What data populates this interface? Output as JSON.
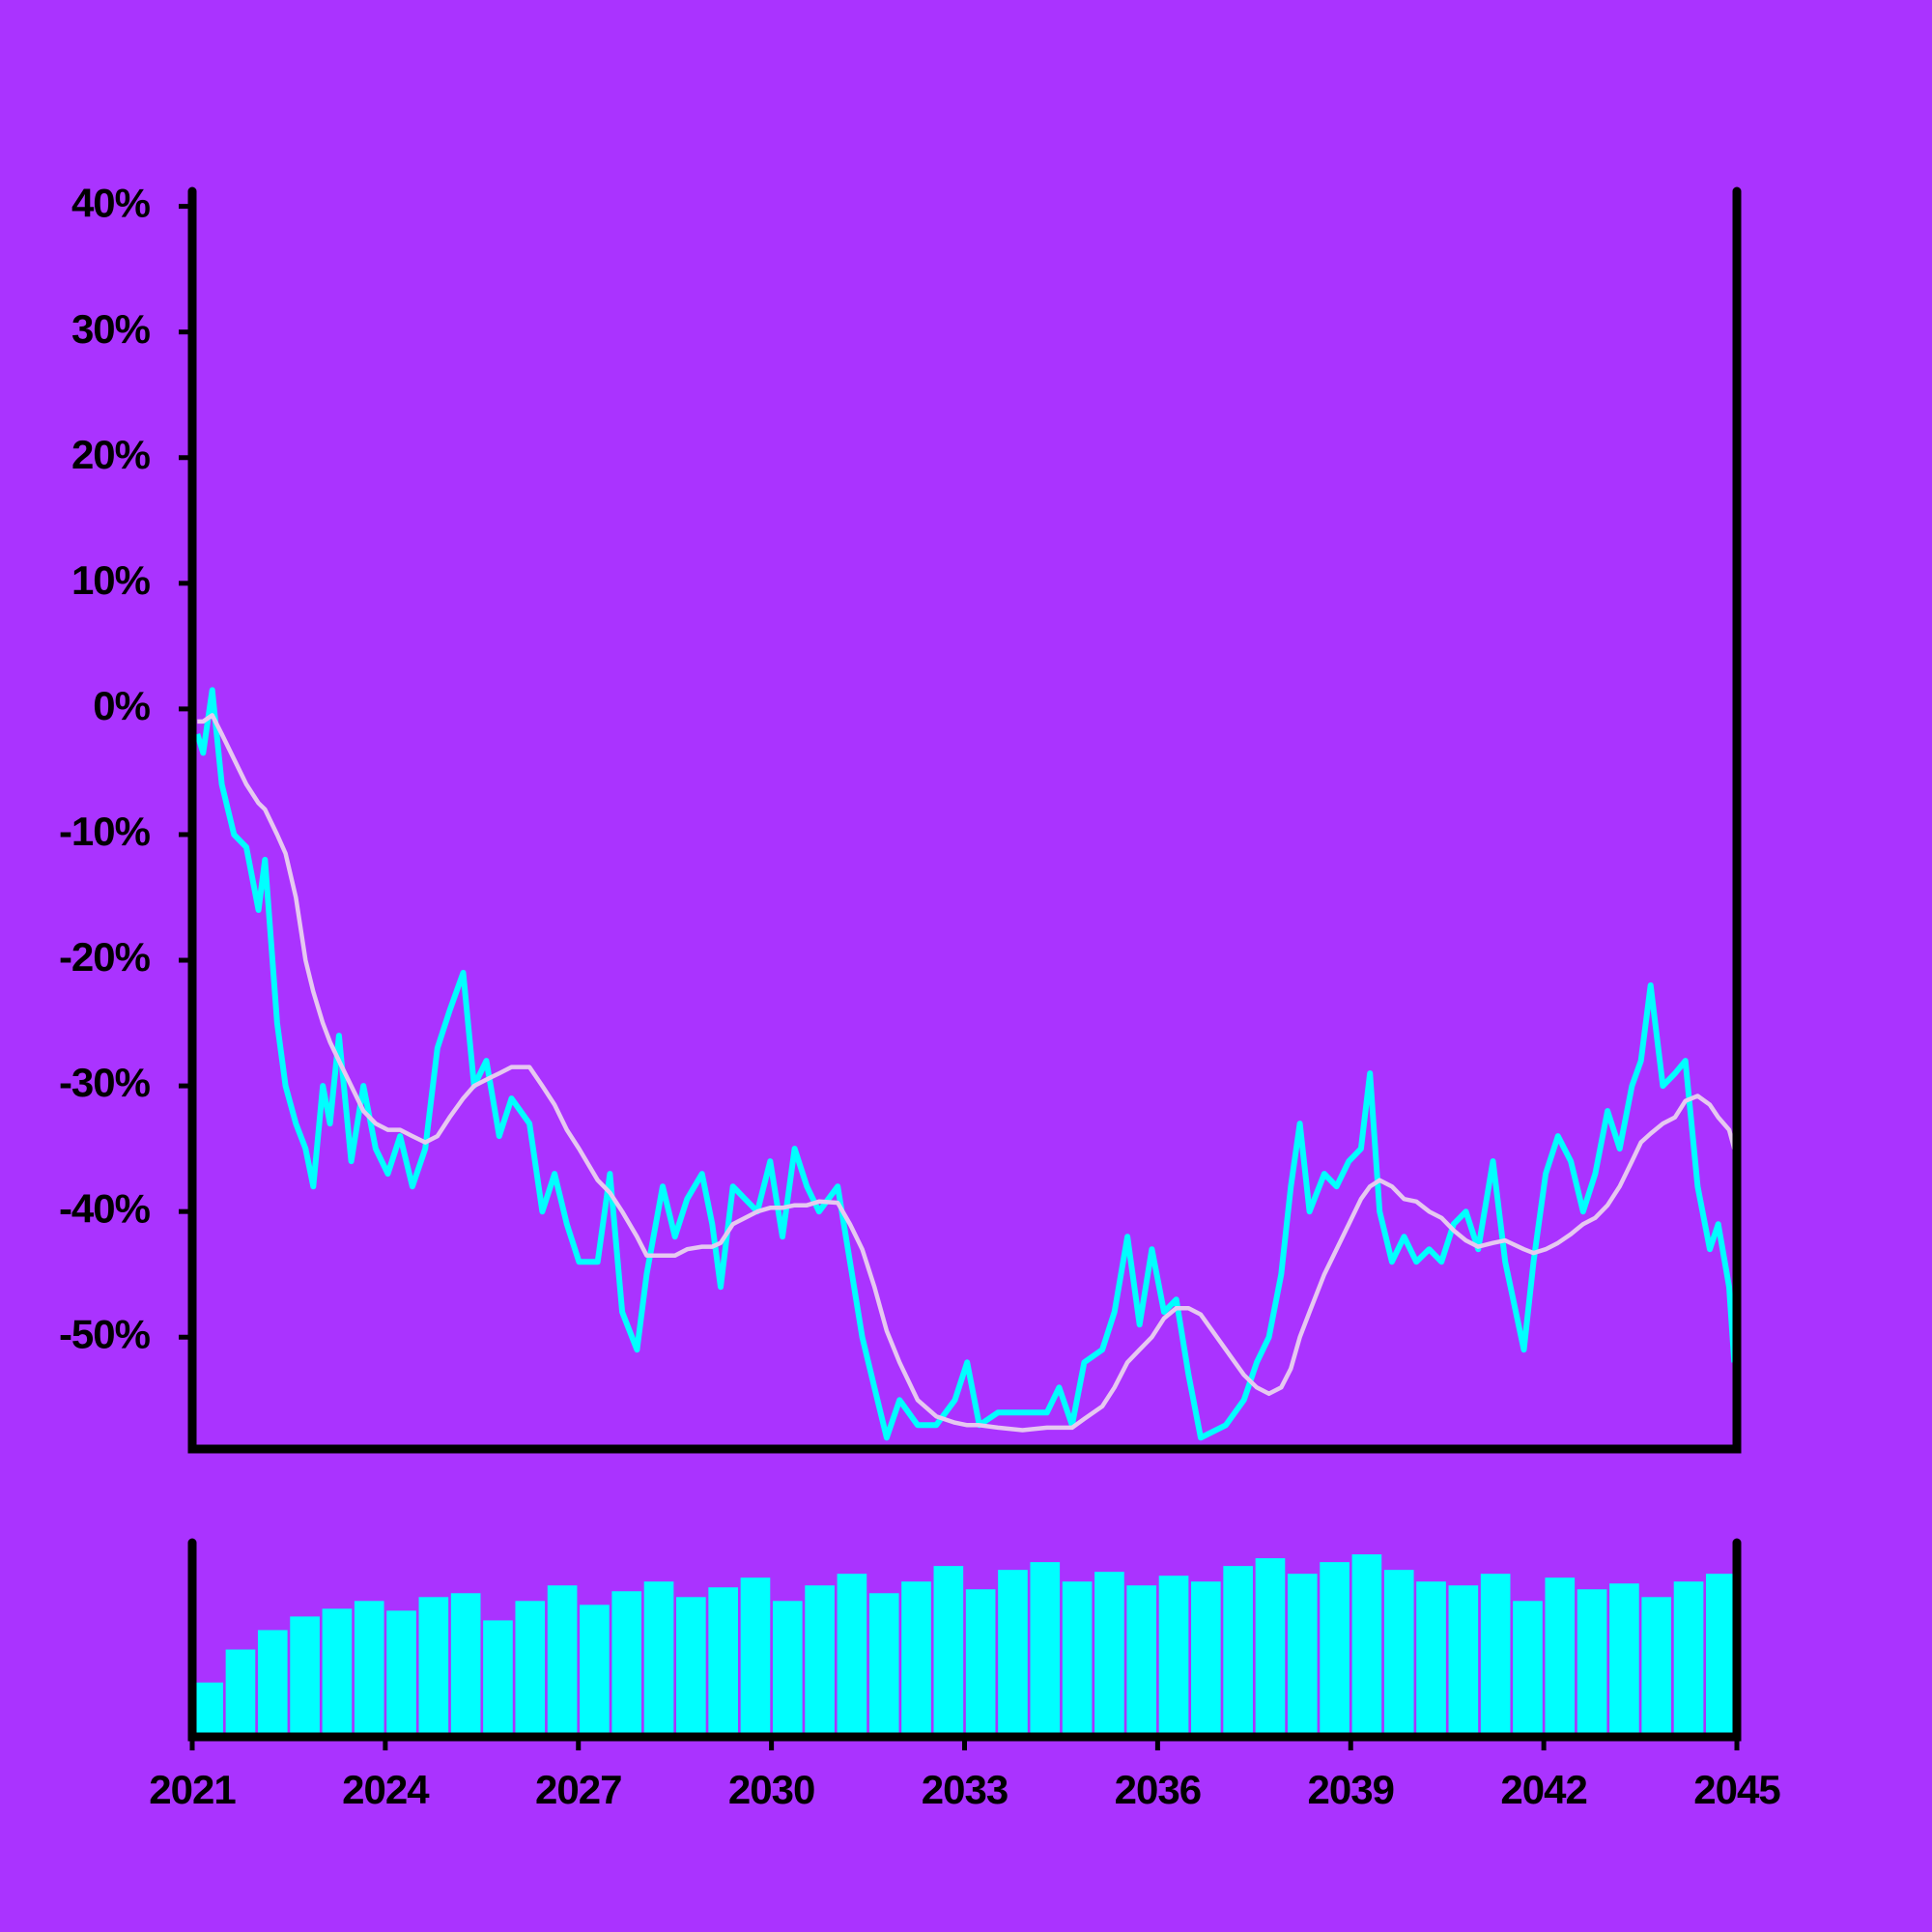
{
  "chart_data": [
    {
      "type": "line",
      "x": [
        2021.08,
        2021.17,
        2021.31,
        2021.46,
        2021.65,
        2021.84,
        2022.03,
        2022.13,
        2022.32,
        2022.45,
        2022.61,
        2022.76,
        2022.88,
        2023.03,
        2023.14,
        2023.28,
        2023.47,
        2023.66,
        2023.85,
        2024.04,
        2024.23,
        2024.42,
        2024.62,
        2024.81,
        2025.0,
        2025.21,
        2025.38,
        2025.57,
        2025.77,
        2025.96,
        2026.24,
        2026.44,
        2026.63,
        2026.82,
        2027.01,
        2027.3,
        2027.49,
        2027.68,
        2027.91,
        2028.06,
        2028.31,
        2028.5,
        2028.69,
        2028.92,
        2029.08,
        2029.21,
        2029.4,
        2029.59,
        2029.78,
        2029.98,
        2030.17,
        2030.36,
        2030.55,
        2030.74,
        2031.03,
        2031.22,
        2031.41,
        2031.6,
        2031.79,
        2031.99,
        2032.27,
        2032.56,
        2032.85,
        2033.04,
        2033.23,
        2033.52,
        2033.9,
        2034.28,
        2034.47,
        2034.67,
        2034.86,
        2035.14,
        2035.33,
        2035.53,
        2035.72,
        2035.91,
        2036.1,
        2036.29,
        2036.48,
        2036.67,
        2037.06,
        2037.34,
        2037.54,
        2037.73,
        2037.92,
        2038.07,
        2038.21,
        2038.36,
        2038.59,
        2038.78,
        2038.97,
        2039.16,
        2039.3,
        2039.45,
        2039.64,
        2039.83,
        2040.02,
        2040.22,
        2040.41,
        2040.6,
        2040.79,
        2040.98,
        2041.21,
        2041.4,
        2041.69,
        2041.84,
        2042.03,
        2042.22,
        2042.42,
        2042.61,
        2042.8,
        2042.99,
        2043.18,
        2043.37,
        2043.51,
        2043.66,
        2043.85,
        2044.04,
        2044.2,
        2044.39,
        2044.58,
        2044.71,
        2044.88,
        2044.96
      ],
      "series": [
        {
          "color": "#00ffff",
          "values": [
            -2,
            -3.5,
            1.5,
            -6,
            -10,
            -11,
            -16,
            -12,
            -25,
            -30,
            -33,
            -35,
            -38,
            -30,
            -33,
            -26,
            -36,
            -30,
            -35,
            -37,
            -34,
            -38,
            -35,
            -27,
            -24,
            -21,
            -30,
            -28,
            -34,
            -31,
            -33,
            -40,
            -37,
            -41,
            -44,
            -44,
            -37,
            -48,
            -51,
            -45,
            -38,
            -42,
            -39,
            -37,
            -41,
            -46,
            -38,
            -39,
            -40,
            -36,
            -42,
            -35,
            -38,
            -40,
            -38,
            -44,
            -50,
            -54,
            -58,
            -55,
            -57,
            -57,
            -55,
            -52,
            -57,
            -56,
            -56,
            -56,
            -54,
            -57,
            -52,
            -51,
            -48,
            -42,
            -49,
            -43,
            -48,
            -47,
            -53,
            -58,
            -57,
            -55,
            -52,
            -50,
            -45,
            -38,
            -33,
            -40,
            -37,
            -38,
            -36,
            -35,
            -29,
            -40,
            -44,
            -42,
            -44,
            -43,
            -44,
            -41,
            -40,
            -43,
            -36,
            -44,
            -51,
            -44,
            -37,
            -34,
            -36,
            -40,
            -37,
            -32,
            -35,
            -30,
            -28,
            -22,
            -30,
            -29,
            -28,
            -38,
            -43,
            -41,
            -46,
            -52
          ]
        },
        {
          "color": "#e6c8f0",
          "values": [
            -1,
            -1,
            -0.5,
            -2,
            -4,
            -6,
            -7.5,
            -8,
            -10,
            -11.5,
            -15,
            -20,
            -22.5,
            -25,
            -26.5,
            -28,
            -30,
            -32,
            -33,
            -33.5,
            -33.5,
            -34,
            -34.5,
            -34,
            -32.5,
            -31,
            -30,
            -29.5,
            -29,
            -28.5,
            -28.5,
            -30,
            -31.5,
            -33.5,
            -35,
            -37.5,
            -38.5,
            -40,
            -42,
            -43.5,
            -43.5,
            -43.5,
            -43,
            -42.8,
            -42.8,
            -42.5,
            -41,
            -40.5,
            -40,
            -39.7,
            -39.7,
            -39.5,
            -39.5,
            -39.2,
            -39.3,
            -41,
            -43,
            -46,
            -49.5,
            -52,
            -55,
            -56.3,
            -56.8,
            -57,
            -57,
            -57.2,
            -57.4,
            -57.2,
            -57.2,
            -57.2,
            -56.5,
            -55.5,
            -54,
            -52,
            -51,
            -50,
            -48.5,
            -47.7,
            -47.7,
            -48.2,
            -51,
            -53,
            -54,
            -54.5,
            -54,
            -52.5,
            -50,
            -48,
            -45,
            -43,
            -41,
            -39,
            -38,
            -37.5,
            -38,
            -39,
            -39.2,
            -40,
            -40.5,
            -41.5,
            -42.3,
            -42.8,
            -42.5,
            -42.3,
            -43,
            -43.3,
            -43,
            -42.5,
            -41.8,
            -41,
            -40.5,
            -39.5,
            -38,
            -36,
            -34.5,
            -33.8,
            -33,
            -32.5,
            -31.2,
            -30.8,
            -31.5,
            -32.5,
            -33.5,
            -35
          ]
        }
      ],
      "xlim": [
        2021,
        2045
      ],
      "ylim": [
        -58.9,
        41.2
      ],
      "yticks": [
        {
          "value": -50,
          "label": "-50%"
        },
        {
          "value": -40,
          "label": "-40%"
        },
        {
          "value": -30,
          "label": "-30%"
        },
        {
          "value": -20,
          "label": "-20%"
        },
        {
          "value": -10,
          "label": "-10%"
        },
        {
          "value": 0,
          "label": "0%"
        },
        {
          "value": 10,
          "label": "10%"
        },
        {
          "value": 20,
          "label": "20%"
        },
        {
          "value": 30,
          "label": "30%"
        },
        {
          "value": 40,
          "label": "40%"
        }
      ]
    },
    {
      "type": "bar",
      "x": [
        2021.25,
        2021.75,
        2022.25,
        2022.75,
        2023.25,
        2023.75,
        2024.25,
        2024.75,
        2025.25,
        2025.75,
        2026.25,
        2026.75,
        2027.25,
        2027.75,
        2028.25,
        2028.75,
        2029.25,
        2029.75,
        2030.25,
        2030.75,
        2031.25,
        2031.75,
        2032.25,
        2032.75,
        2033.25,
        2033.75,
        2034.25,
        2034.75,
        2035.25,
        2035.75,
        2036.25,
        2036.75,
        2037.25,
        2037.75,
        2038.25,
        2038.75,
        2039.25,
        2039.75,
        2040.25,
        2040.75,
        2041.25,
        2041.75,
        2042.25,
        2042.75,
        2043.25,
        2043.75,
        2044.25,
        2044.75
      ],
      "values": [
        28,
        45,
        55,
        62,
        66,
        70,
        65,
        72,
        74,
        60,
        70,
        78,
        68,
        75,
        80,
        72,
        77,
        82,
        70,
        78,
        84,
        74,
        80,
        88,
        76,
        86,
        90,
        80,
        85,
        78,
        83,
        80,
        88,
        92,
        84,
        90,
        94,
        86,
        80,
        78,
        84,
        70,
        82,
        76,
        79,
        72,
        80,
        84
      ],
      "color": "#00ffff",
      "xlim": [
        2021,
        2045
      ],
      "ylim": [
        0,
        100
      ],
      "xticks": [
        2021,
        2024,
        2027,
        2030,
        2033,
        2036,
        2039,
        2042,
        2045
      ]
    }
  ]
}
